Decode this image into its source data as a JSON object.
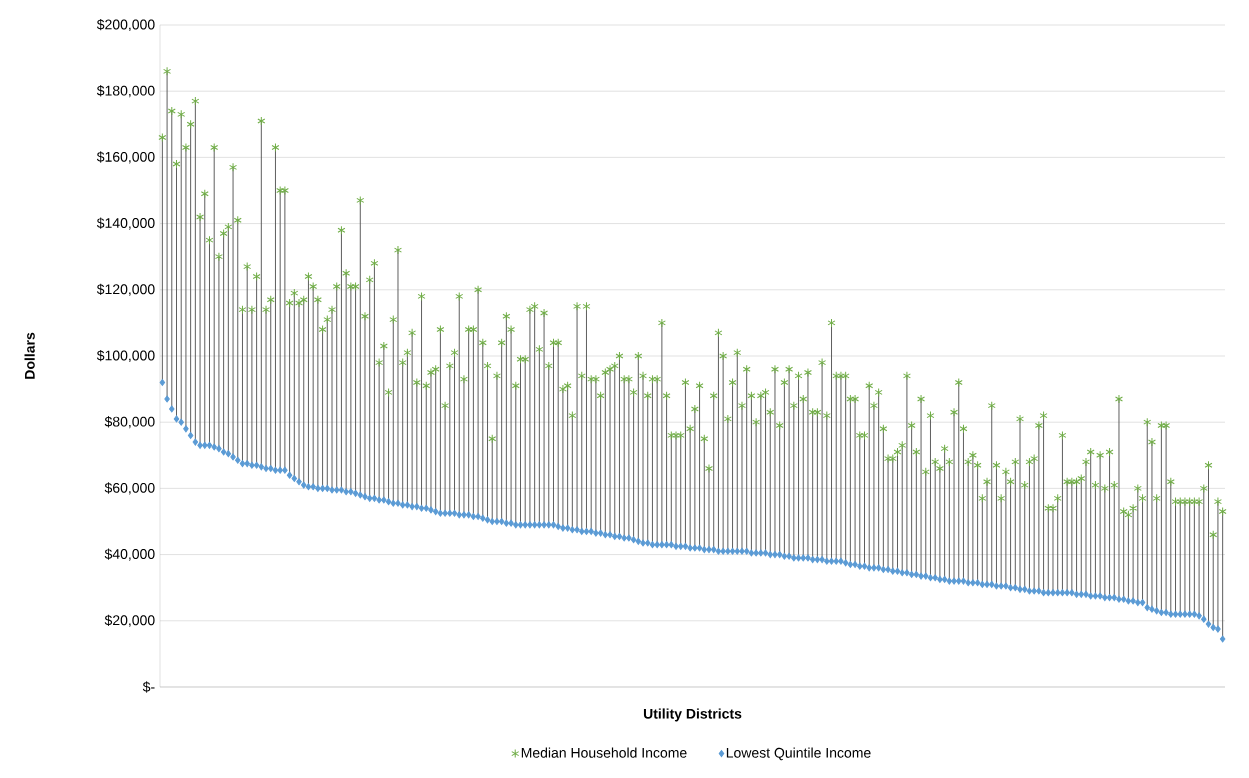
{
  "chart_data": {
    "type": "scatter",
    "xlabel": "Utility Districts",
    "ylabel": "Dollars",
    "categories": [
      null,
      null,
      null,
      null,
      null,
      null,
      null,
      null,
      null,
      null,
      null,
      null,
      null,
      null,
      null,
      null,
      null,
      null,
      null,
      null,
      null,
      null,
      null,
      null,
      null,
      null,
      null,
      null,
      null,
      null,
      null,
      null,
      null,
      null,
      null,
      null,
      null,
      null,
      null,
      null,
      null,
      null,
      null,
      null,
      null,
      null,
      null,
      null,
      null,
      null,
      null,
      null,
      null,
      null,
      null,
      null,
      null,
      null,
      null,
      null,
      null,
      null,
      null,
      null,
      null,
      null,
      null,
      null,
      null,
      null,
      null,
      null,
      null,
      null,
      null,
      null,
      null,
      null,
      null,
      null,
      null,
      null,
      null,
      null,
      null,
      null,
      null,
      null,
      null,
      null,
      null,
      null,
      null,
      null,
      null,
      null,
      null,
      null,
      null,
      null,
      null,
      null,
      null,
      null,
      null,
      null,
      null,
      null,
      null,
      null,
      null,
      null,
      null,
      null,
      null,
      null,
      null,
      null,
      null,
      null,
      null,
      null,
      null,
      null,
      null,
      null,
      null,
      null,
      null,
      null,
      null,
      null,
      null,
      null,
      null,
      null,
      null,
      null,
      null,
      null,
      null,
      null,
      null,
      null,
      null,
      null,
      null,
      null,
      null,
      null,
      null,
      null,
      null,
      null,
      null,
      null,
      null,
      null,
      null,
      null,
      null,
      null,
      null,
      null,
      null,
      null,
      null,
      null,
      null,
      null,
      null,
      null,
      null,
      null,
      null,
      null,
      null,
      null,
      null,
      null,
      null,
      null,
      null,
      null,
      null,
      null,
      null,
      null,
      null,
      null,
      null,
      null,
      null,
      null,
      null,
      null,
      null,
      null,
      null,
      null,
      null,
      null,
      null,
      null,
      null,
      null,
      null,
      null,
      null,
      null,
      null,
      null,
      null,
      null,
      null,
      null,
      null,
      null,
      null,
      null,
      null,
      null,
      null,
      null,
      null,
      null
    ],
    "series": [
      {
        "name": "Median Household Income",
        "color": "#70ad47",
        "marker": "cross",
        "values": [
          166000,
          186000,
          174000,
          158000,
          173000,
          163000,
          170000,
          177000,
          142000,
          149000,
          135000,
          163000,
          130000,
          137000,
          139000,
          157000,
          141000,
          114000,
          127000,
          114000,
          124000,
          171000,
          114000,
          117000,
          163000,
          150000,
          150000,
          116000,
          119000,
          116000,
          117000,
          124000,
          121000,
          117000,
          108000,
          111000,
          114000,
          121000,
          138000,
          125000,
          121000,
          121000,
          147000,
          112000,
          123000,
          128000,
          98000,
          103000,
          89000,
          111000,
          132000,
          98000,
          101000,
          107000,
          92000,
          118000,
          91000,
          95000,
          96000,
          108000,
          85000,
          97000,
          101000,
          118000,
          93000,
          108000,
          108000,
          120000,
          104000,
          97000,
          75000,
          94000,
          104000,
          112000,
          108000,
          91000,
          99000,
          99000,
          114000,
          115000,
          102000,
          113000,
          97000,
          104000,
          104000,
          90000,
          91000,
          82000,
          115000,
          94000,
          115000,
          93000,
          93000,
          88000,
          95000,
          96000,
          97000,
          100000,
          93000,
          93000,
          89000,
          100000,
          94000,
          88000,
          93000,
          93000,
          110000,
          88000,
          76000,
          76000,
          76000,
          92000,
          78000,
          84000,
          91000,
          75000,
          66000,
          88000,
          107000,
          100000,
          81000,
          92000,
          101000,
          85000,
          96000,
          88000,
          80000,
          88000,
          89000,
          83000,
          96000,
          79000,
          92000,
          96000,
          85000,
          94000,
          87000,
          95000,
          83000,
          83000,
          98000,
          82000,
          110000,
          94000,
          94000,
          94000,
          87000,
          87000,
          76000,
          76000,
          91000,
          85000,
          89000,
          78000,
          69000,
          69000,
          71000,
          73000,
          94000,
          79000,
          71000,
          87000,
          65000,
          82000,
          68000,
          66000,
          72000,
          68000,
          83000,
          92000,
          78000,
          68000,
          70000,
          67000,
          57000,
          62000,
          85000,
          67000,
          57000,
          65000,
          62000,
          68000,
          81000,
          61000,
          68000,
          69000,
          79000,
          82000,
          54000,
          54000,
          57000,
          76000,
          62000,
          62000,
          62000,
          63000,
          68000,
          71000,
          61000,
          70000,
          60000,
          71000,
          61000,
          87000,
          53000,
          52000,
          54000,
          60000,
          57000,
          80000,
          74000,
          57000,
          79000,
          79000,
          62000,
          56000,
          56000,
          56000,
          56000,
          56000,
          56000,
          60000,
          67000,
          46000,
          56000,
          53000
        ]
      },
      {
        "name": "Lowest Quintile Income",
        "color": "#5b9bd5",
        "marker": "diamond",
        "values": [
          92000,
          87000,
          84000,
          81000,
          80000,
          78000,
          76000,
          74000,
          73000,
          73000,
          73000,
          72500,
          72000,
          71000,
          70500,
          69500,
          68500,
          67500,
          67500,
          67000,
          67000,
          66500,
          66000,
          66000,
          65500,
          65500,
          65500,
          64000,
          63000,
          62000,
          61000,
          60500,
          60500,
          60000,
          60000,
          60000,
          59500,
          59500,
          59500,
          59000,
          59000,
          58500,
          58000,
          57500,
          57000,
          57000,
          56500,
          56500,
          56000,
          55500,
          55500,
          55000,
          55000,
          54500,
          54500,
          54000,
          54000,
          53500,
          53000,
          52500,
          52500,
          52500,
          52500,
          52000,
          52000,
          52000,
          51500,
          51500,
          51000,
          50500,
          50000,
          50000,
          50000,
          49500,
          49500,
          49000,
          49000,
          49000,
          49000,
          49000,
          49000,
          49000,
          49000,
          49000,
          48500,
          48000,
          48000,
          47500,
          47500,
          47000,
          47000,
          47000,
          46500,
          46500,
          46000,
          46000,
          45500,
          45500,
          45000,
          45000,
          44500,
          44000,
          43500,
          43500,
          43000,
          43000,
          43000,
          43000,
          43000,
          42500,
          42500,
          42500,
          42000,
          42000,
          42000,
          41500,
          41500,
          41500,
          41000,
          41000,
          41000,
          41000,
          41000,
          41000,
          41000,
          40500,
          40500,
          40500,
          40500,
          40000,
          40000,
          40000,
          39500,
          39500,
          39000,
          39000,
          39000,
          39000,
          38500,
          38500,
          38500,
          38000,
          38000,
          38000,
          38000,
          37500,
          37000,
          37000,
          36500,
          36500,
          36000,
          36000,
          36000,
          35500,
          35500,
          35000,
          35000,
          34500,
          34500,
          34000,
          34000,
          33500,
          33500,
          33000,
          33000,
          32500,
          32500,
          32000,
          32000,
          32000,
          32000,
          31500,
          31500,
          31500,
          31000,
          31000,
          31000,
          30500,
          30500,
          30500,
          30000,
          30000,
          29500,
          29500,
          29000,
          29000,
          29000,
          28500,
          28500,
          28500,
          28500,
          28500,
          28500,
          28500,
          28000,
          28000,
          28000,
          27500,
          27500,
          27500,
          27000,
          27000,
          27000,
          26500,
          26500,
          26000,
          26000,
          25500,
          25500,
          24000,
          23500,
          23000,
          22500,
          22500,
          22000,
          22000,
          22000,
          22000,
          22000,
          22000,
          21500,
          20500,
          19000,
          18000,
          17500,
          14500
        ]
      }
    ],
    "ylim": [
      0,
      200000
    ],
    "yticks": [
      {
        "value": 0,
        "label": "$-"
      },
      {
        "value": 20000,
        "label": "$20,000"
      },
      {
        "value": 40000,
        "label": "$40,000"
      },
      {
        "value": 60000,
        "label": "$60,000"
      },
      {
        "value": 80000,
        "label": "$80,000"
      },
      {
        "value": 100000,
        "label": "$100,000"
      },
      {
        "value": 120000,
        "label": "$120,000"
      },
      {
        "value": 140000,
        "label": "$140,000"
      },
      {
        "value": 160000,
        "label": "$160,000"
      },
      {
        "value": 180000,
        "label": "$180,000"
      },
      {
        "value": 200000,
        "label": "$200,000"
      }
    ],
    "grid": "y",
    "legend": "bottom"
  }
}
